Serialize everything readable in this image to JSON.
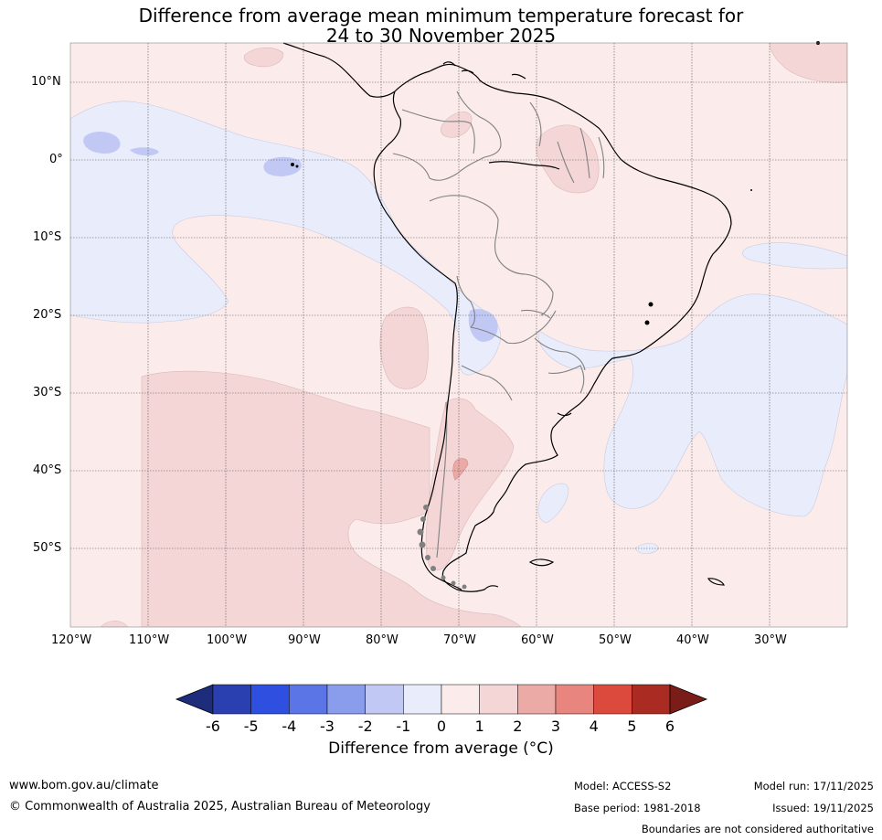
{
  "title": {
    "line1": "Difference from average mean minimum temperature forecast for",
    "line2": "24 to 30 November 2025"
  },
  "map": {
    "lat_labels": [
      "10°N",
      "0°",
      "10°S",
      "20°S",
      "30°S",
      "40°S",
      "50°S"
    ],
    "lon_labels": [
      "120°W",
      "110°W",
      "100°W",
      "90°W",
      "80°W",
      "70°W",
      "60°W",
      "50°W",
      "40°W",
      "30°W"
    ],
    "colors": {
      "minus1_0": "#e9ecfb",
      "minus2_1": "#c1c8f3",
      "zero_1": "#fbeceb",
      "one_2": "#f4d6d6",
      "two_3": "#ecaaa6",
      "land_border": "#000000",
      "country_border": "#808080"
    }
  },
  "colorbar": {
    "tick_labels": [
      "-6",
      "-5",
      "-4",
      "-3",
      "-2",
      "-1",
      "0",
      "1",
      "2",
      "3",
      "4",
      "5",
      "6"
    ],
    "colors": [
      "#1e2c7c",
      "#2a3fb0",
      "#2f4fe0",
      "#5b74e6",
      "#8a9cec",
      "#c1c8f3",
      "#e9ecfb",
      "#fbeceb",
      "#f4d6d6",
      "#ecaaa6",
      "#e8857e",
      "#db4a3c",
      "#a92b22",
      "#7a1c18"
    ],
    "title": "Difference from average (°C)"
  },
  "footer": {
    "website": "www.bom.gov.au/climate",
    "copyright": "© Commonwealth of Australia 2025, Australian Bureau of Meteorology",
    "model": "Model: ACCESS-S2",
    "base_period": "Base period: 1981-2018",
    "model_run": "Model run: 17/11/2025",
    "issued": "Issued: 19/11/2025",
    "disclaimer": "Boundaries are not considered authoritative"
  }
}
